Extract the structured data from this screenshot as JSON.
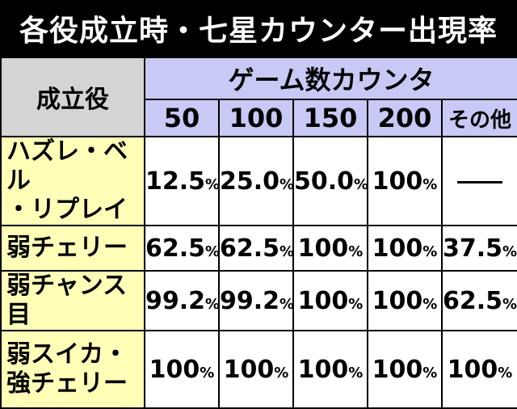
{
  "title": "各役成立時・七星カウンター出現率",
  "header": {
    "row_header": "成立役",
    "group_label": "ゲーム数カウンタ",
    "columns": [
      "50",
      "100",
      "150",
      "200",
      "その他"
    ]
  },
  "rows": [
    {
      "label_lines": [
        "ハズレ・ベル",
        "・リプレイ"
      ],
      "values": [
        "12.5",
        "25.0",
        "50.0",
        "100",
        null
      ]
    },
    {
      "label_lines": [
        "弱チェリー"
      ],
      "values": [
        "62.5",
        "62.5",
        "100",
        "100",
        "37.5"
      ]
    },
    {
      "label_lines": [
        "弱チャンス目"
      ],
      "values": [
        "99.2",
        "99.2",
        "100",
        "100",
        "62.5"
      ]
    },
    {
      "label_lines": [
        "弱スイカ・",
        "強チェリー"
      ],
      "values": [
        "100",
        "100",
        "100",
        "100",
        "100"
      ]
    }
  ],
  "unit": "%",
  "dash": "—",
  "colors": {
    "title_bg": "#000000",
    "header_bg": "#c8c9f4",
    "row_header_bg": "#d4d4d4",
    "row_label_bg": "#ffffb8"
  }
}
